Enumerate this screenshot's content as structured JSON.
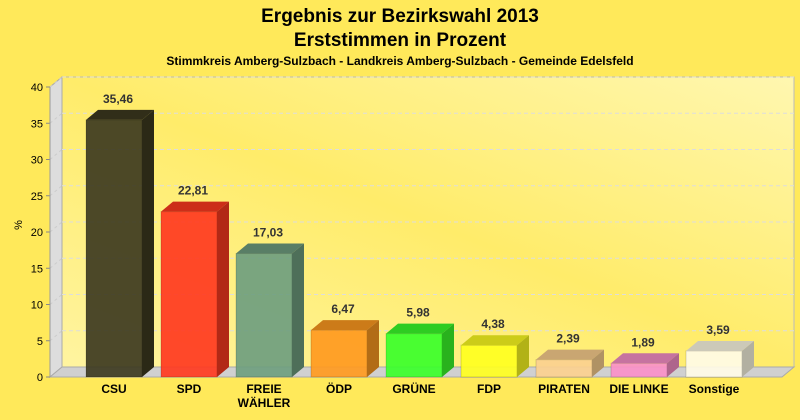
{
  "chart_data": {
    "type": "bar",
    "title": "Ergebnis zur Bezirkswahl 2013",
    "subtitle": "Erststimmen in Prozent",
    "caption": "Stimmkreis Amberg-Sulzbach - Landkreis Amberg-Sulzbach - Gemeinde Edelsfeld",
    "ylabel": "%",
    "xlabel": "",
    "ylim": [
      0,
      40
    ],
    "yticks": [
      0,
      5,
      10,
      15,
      20,
      25,
      30,
      35,
      40
    ],
    "grid": true,
    "categories": [
      "CSU",
      "SPD",
      "FREIE WÄHLER",
      "ÖDP",
      "GRÜNE",
      "FDP",
      "PIRATEN",
      "DIE LINKE",
      "Sonstige"
    ],
    "category_lines": [
      [
        "CSU"
      ],
      [
        "SPD"
      ],
      [
        "FREIE",
        "WÄHLER"
      ],
      [
        "ÖDP"
      ],
      [
        "GRÜNE"
      ],
      [
        "FDP"
      ],
      [
        "PIRATEN"
      ],
      [
        "DIE LINKE"
      ],
      [
        "Sonstige"
      ]
    ],
    "values": [
      35.46,
      22.81,
      17.03,
      6.47,
      5.98,
      4.38,
      2.39,
      1.89,
      3.59
    ],
    "labels": [
      "35,46",
      "22,81",
      "17,03",
      "6,47",
      "5,98",
      "4,38",
      "2,39",
      "1,89",
      "3,59"
    ],
    "colors": [
      "#3d3a1f",
      "#ff3a1f",
      "#6f9e7f",
      "#ff9a1f",
      "#3aff2a",
      "#ffff1f",
      "#fbd08f",
      "#f890c8",
      "#fffbe6"
    ]
  }
}
